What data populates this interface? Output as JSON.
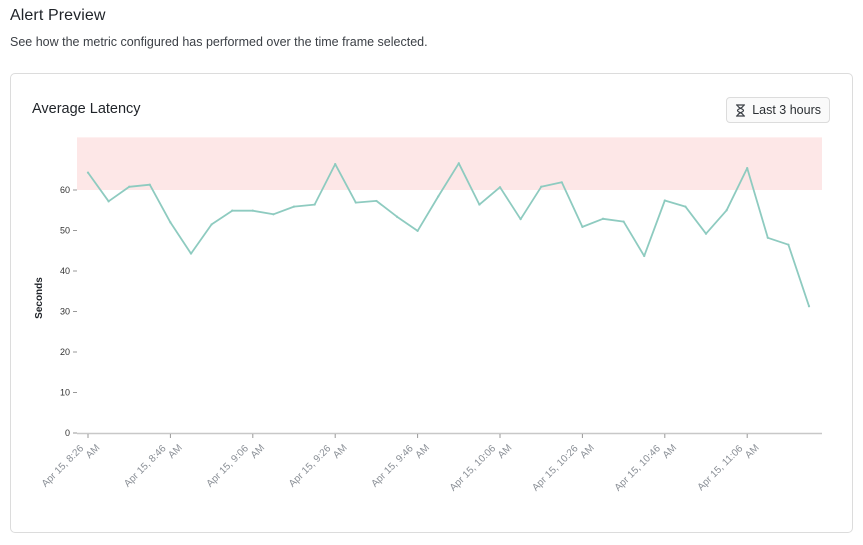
{
  "header": {
    "title": "Alert Preview",
    "subtitle": "See how the metric configured has performed over the time frame selected."
  },
  "card": {
    "title": "Average Latency",
    "time_range_label": "Last 3 hours"
  },
  "colors": {
    "line": "#8ecbc0",
    "threshold_band": "#fde7e7",
    "axis": "#c8c8c8"
  },
  "chart_data": {
    "type": "line",
    "title": "Average Latency",
    "xlabel": "",
    "ylabel": "Seconds",
    "ylim": [
      0,
      73
    ],
    "yticks": [
      0,
      10,
      20,
      30,
      40,
      50,
      60
    ],
    "grid": false,
    "x_tick_labels": [
      [
        "Apr 15, 8:26",
        "AM"
      ],
      [
        "Apr 15, 8:46",
        "AM"
      ],
      [
        "Apr 15, 9:06",
        "AM"
      ],
      [
        "Apr 15, 9:26",
        "AM"
      ],
      [
        "Apr 15, 9:46",
        "AM"
      ],
      [
        "Apr 15, 10:06",
        "AM"
      ],
      [
        "Apr 15, 10:26",
        "AM"
      ],
      [
        "Apr 15, 10:46",
        "AM"
      ],
      [
        "Apr 15, 11:06",
        "AM"
      ]
    ],
    "threshold_band": {
      "from": 60,
      "to": 73
    },
    "series": [
      {
        "x_minutes": [
          0,
          5,
          10,
          15,
          20,
          25,
          30,
          35,
          40,
          45,
          50,
          55,
          60,
          65,
          70,
          75,
          80,
          85,
          90,
          95,
          100,
          105,
          110,
          115,
          120,
          125,
          130,
          135,
          140,
          145,
          150,
          155,
          160,
          165,
          170,
          175
        ],
        "values": [
          64.3,
          57.2,
          60.8,
          61.3,
          52.0,
          44.3,
          51.5,
          54.9,
          54.9,
          54.0,
          55.9,
          56.4,
          66.4,
          56.9,
          57.3,
          53.4,
          49.9,
          58.4,
          66.6,
          56.4,
          60.7,
          52.8,
          60.8,
          61.9,
          50.9,
          52.9,
          52.2,
          43.7,
          57.4,
          55.9,
          49.2,
          55.0,
          65.4,
          48.2,
          46.5,
          31.3
        ]
      }
    ]
  }
}
